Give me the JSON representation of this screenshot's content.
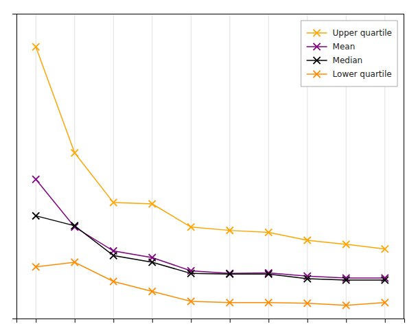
{
  "chart_data": {
    "type": "line",
    "x": [
      1,
      2,
      3,
      4,
      5,
      6,
      7,
      8,
      9,
      10
    ],
    "series": [
      {
        "name": "Upper quartile",
        "color": "#FFA500",
        "marker": "x",
        "values": [
          4700,
          3100,
          2350,
          2330,
          1980,
          1930,
          1900,
          1780,
          1720,
          1650
        ]
      },
      {
        "name": "Mean",
        "color": "#800080",
        "marker": "x",
        "values": [
          2700,
          1980,
          1620,
          1520,
          1320,
          1280,
          1290,
          1240,
          1210,
          1210
        ]
      },
      {
        "name": "Median",
        "color": "#000000",
        "marker": "x",
        "values": [
          2150,
          2000,
          1550,
          1450,
          1280,
          1270,
          1270,
          1200,
          1180,
          1180
        ]
      },
      {
        "name": "Lower quartile",
        "color": "#FF8C00",
        "marker": "x",
        "values": [
          1380,
          1450,
          1160,
          1010,
          860,
          840,
          840,
          830,
          800,
          840
        ]
      }
    ],
    "xlim": [
      0.5,
      10.5
    ],
    "ylim": [
      600,
      5200
    ],
    "xticks": [
      1,
      2,
      3,
      4,
      5,
      6,
      7,
      8,
      9,
      10
    ],
    "yticks": [],
    "grid": true,
    "legend": "upper right",
    "tick_labels": false
  }
}
